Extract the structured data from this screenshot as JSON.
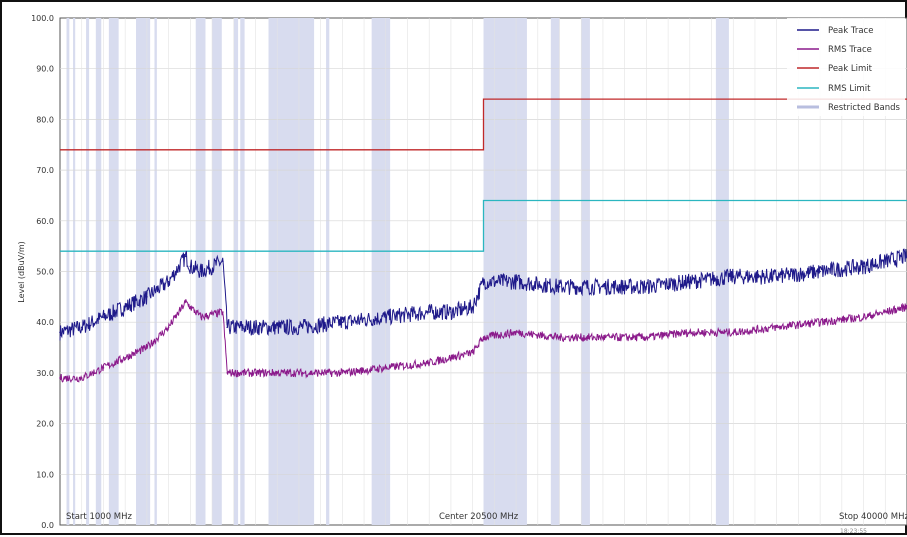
{
  "chart_data": {
    "type": "line",
    "ylabel": "Level (dBuV/m)",
    "ylim": [
      0,
      100
    ],
    "xlim_mhz": [
      1000,
      40000
    ],
    "y_ticks": [
      "0.0",
      "10.0",
      "20.0",
      "30.0",
      "40.0",
      "50.0",
      "60.0",
      "70.0",
      "80.0",
      "90.0",
      "100.0"
    ],
    "annotations": {
      "start": "Start 1000 MHz",
      "center": "Center 20500 MHz",
      "stop": "Stop 40000 MHz",
      "timestamp": "18:23:55"
    },
    "legend_position": "top-right",
    "grid": true,
    "colors": {
      "peak_trace": "#1f1a8a",
      "rms_trace": "#8b1a8b",
      "peak_limit": "#c0282a",
      "rms_limit": "#2bb6c0",
      "restricted": "#d8dcef"
    },
    "series": [
      {
        "name": "Peak Trace",
        "x": [
          1000,
          2000,
          3000,
          4000,
          5000,
          6000,
          6800,
          7000,
          7500,
          8500,
          8700,
          10000,
          12000,
          14000,
          16000,
          18000,
          19000,
          20000,
          20500,
          22000,
          24000,
          26000,
          28000,
          30000,
          32000,
          34000,
          36000,
          38000,
          40000
        ],
        "y": [
          38,
          39,
          41,
          43,
          45,
          48,
          53,
          51,
          50,
          52,
          39,
          39,
          39,
          40,
          41,
          42,
          42,
          43,
          48,
          48,
          47,
          47,
          47,
          48,
          49,
          49,
          50,
          51,
          53
        ]
      },
      {
        "name": "RMS Trace",
        "x": [
          1000,
          2000,
          3000,
          4000,
          5000,
          6000,
          6800,
          7000,
          7500,
          8500,
          8700,
          10000,
          12000,
          14000,
          16000,
          18000,
          19000,
          20000,
          20500,
          22000,
          24000,
          26000,
          28000,
          30000,
          32000,
          34000,
          36000,
          38000,
          40000
        ],
        "y": [
          29,
          29,
          31,
          33,
          35,
          39,
          44,
          43,
          41,
          42,
          30,
          30,
          30,
          30,
          31,
          32,
          33,
          34,
          37,
          38,
          37,
          37,
          37,
          38,
          38,
          39,
          40,
          41,
          43
        ]
      },
      {
        "name": "Peak Limit",
        "x": [
          1000,
          20500,
          20500,
          40000
        ],
        "y": [
          74,
          74,
          84,
          84
        ]
      },
      {
        "name": "RMS Limit",
        "x": [
          1000,
          20500,
          20500,
          40000
        ],
        "y": [
          54,
          54,
          64,
          64
        ]
      }
    ],
    "restricted_bands_label": "Restricted Bands",
    "restricted_bands_mhz": [
      [
        1300,
        1430
      ],
      [
        1600,
        1700
      ],
      [
        2200,
        2340
      ],
      [
        2650,
        2900
      ],
      [
        3250,
        3700
      ],
      [
        4500,
        5150
      ],
      [
        5350,
        5460
      ],
      [
        7250,
        7700
      ],
      [
        8000,
        8450
      ],
      [
        9000,
        9200
      ],
      [
        9300,
        9500
      ],
      [
        10600,
        12700
      ],
      [
        13250,
        13400
      ],
      [
        15350,
        16200
      ],
      [
        20500,
        22500
      ],
      [
        23600,
        24000
      ],
      [
        25000,
        25400
      ],
      [
        31200,
        31800
      ]
    ]
  }
}
